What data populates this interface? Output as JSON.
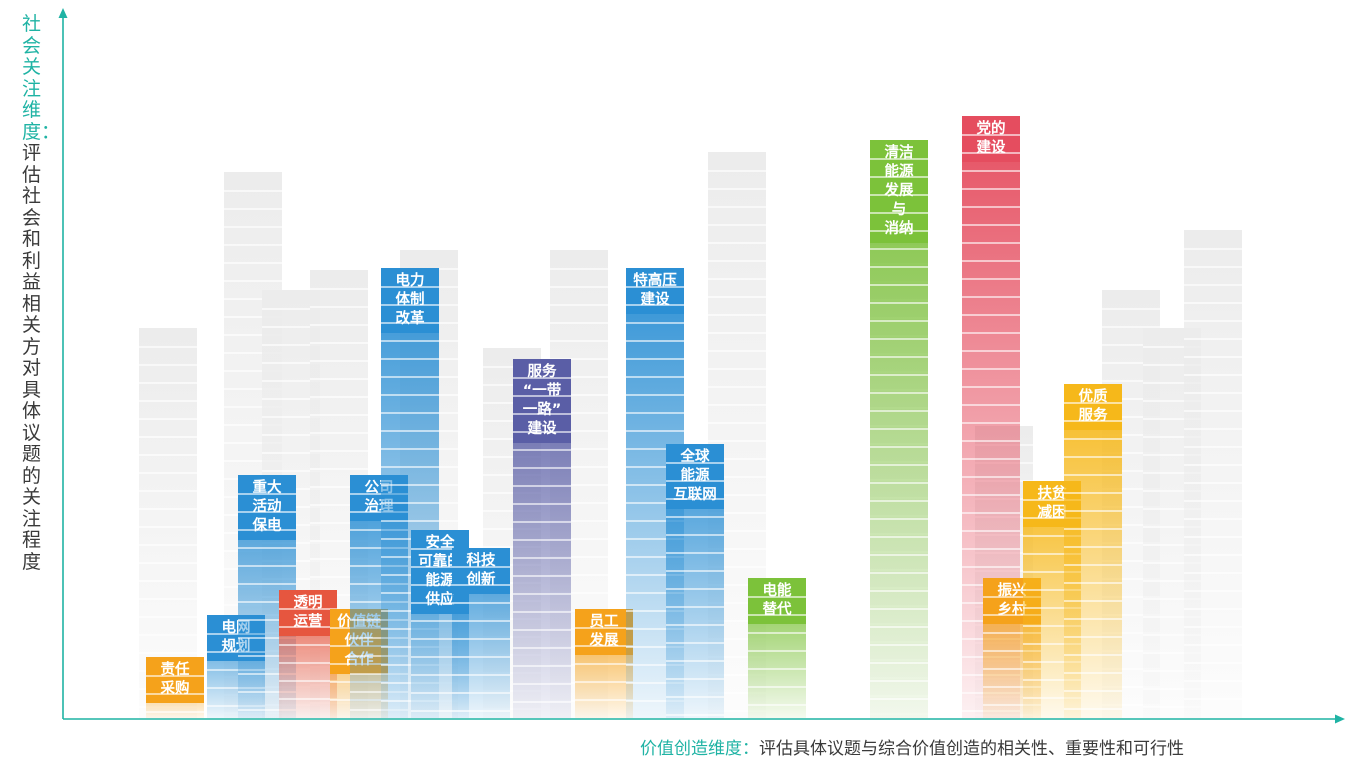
{
  "chart_data": {
    "type": "bar",
    "ylabel_dim": "社会关注维度：",
    "ylabel_desc": "评估社会和利益相关方对具体议题的关注程度",
    "xlabel_dim": "价值创造维度：",
    "xlabel_desc": "评估具体议题与综合价值创造的相关性、重要性和可行性",
    "colors": {
      "orange": "#f5a21b",
      "blue": "#2b8fd4",
      "red": "#e6563f",
      "purple": "#5a5ea6",
      "green": "#7cc23a",
      "pink": "#e54d5f",
      "gold": "#f6b81a",
      "axis": "#1fb3a4",
      "ghost": "#ececec"
    },
    "items": [
      {
        "lines": [
          "责任",
          "采购"
        ],
        "color": "orange",
        "x": 0.3,
        "y": 0.1
      },
      {
        "lines": [
          "电网",
          "规划"
        ],
        "color": "blue",
        "x": 0.6,
        "y": 0.17
      },
      {
        "lines": [
          "重大",
          "活动",
          "保电"
        ],
        "color": "blue",
        "x": 0.75,
        "y": 0.4
      },
      {
        "lines": [
          "透明",
          "运营"
        ],
        "color": "red",
        "x": 0.95,
        "y": 0.21
      },
      {
        "lines": [
          "价值链",
          "伙伴",
          "合作"
        ],
        "color": "orange",
        "x": 1.2,
        "y": 0.18
      },
      {
        "lines": [
          "公司",
          "治理"
        ],
        "color": "blue",
        "x": 1.3,
        "y": 0.4
      },
      {
        "lines": [
          "电力",
          "体制",
          "改革"
        ],
        "color": "blue",
        "x": 1.45,
        "y": 0.74
      },
      {
        "lines": [
          "安全",
          "可靠的",
          "能源",
          "供应"
        ],
        "color": "blue",
        "x": 1.6,
        "y": 0.31
      },
      {
        "lines": [
          "科技",
          "创新"
        ],
        "color": "blue",
        "x": 1.8,
        "y": 0.28
      },
      {
        "lines": [
          "服务",
          "“一带",
          "一路”",
          "建设"
        ],
        "color": "purple",
        "x": 2.1,
        "y": 0.59
      },
      {
        "lines": [
          "员工",
          "发展"
        ],
        "color": "orange",
        "x": 2.4,
        "y": 0.18
      },
      {
        "lines": [
          "特高压",
          "建设"
        ],
        "color": "blue",
        "x": 2.65,
        "y": 0.74
      },
      {
        "lines": [
          "全球",
          "能源",
          "互联网"
        ],
        "color": "blue",
        "x": 2.85,
        "y": 0.45
      },
      {
        "lines": [
          "电能",
          "替代"
        ],
        "color": "green",
        "x": 3.25,
        "y": 0.23
      },
      {
        "lines": [
          "清洁",
          "能源",
          "发展",
          "与",
          "消纳"
        ],
        "color": "green",
        "x": 3.85,
        "y": 0.95
      },
      {
        "lines": [
          "党的",
          "建设"
        ],
        "color": "pink",
        "x": 4.3,
        "y": 0.99
      },
      {
        "lines": [
          "振兴",
          "乡村"
        ],
        "color": "orange",
        "x": 4.4,
        "y": 0.23
      },
      {
        "lines": [
          "扶贫",
          "减困"
        ],
        "color": "gold",
        "x": 4.6,
        "y": 0.39
      },
      {
        "lines": [
          "优质",
          "服务"
        ],
        "color": "gold",
        "x": 4.8,
        "y": 0.55
      }
    ]
  }
}
